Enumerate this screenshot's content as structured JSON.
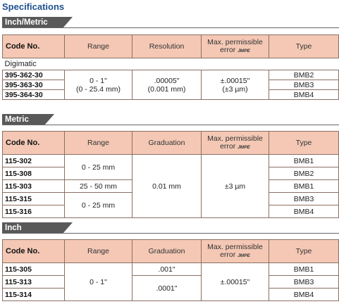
{
  "title": "Specifications",
  "sections": {
    "inch_metric": {
      "tab": "Inch/Metric",
      "headers": {
        "code": "Code No.",
        "range": "Range",
        "res": "Resolution",
        "err1": "Max. permissible",
        "err2": "error ",
        "err_sub": "JMPE",
        "type": "Type"
      },
      "group": "Digimatic",
      "rows": [
        {
          "code": "395-362-30",
          "type": "BMB2"
        },
        {
          "code": "395-363-30",
          "type": "BMB3"
        },
        {
          "code": "395-364-30",
          "type": "BMB4"
        }
      ],
      "range1": "0 - 1\"",
      "range2": "(0 - 25.4 mm)",
      "res1": ".00005\"",
      "res2": "(0.001 mm)",
      "err_v1": "±.00015\"",
      "err_v2": "(±3 µm)"
    },
    "metric": {
      "tab": "Metric",
      "headers": {
        "code": "Code No.",
        "range": "Range",
        "grad": "Graduation",
        "err1": "Max. permissible",
        "err2": "error ",
        "err_sub": "JMPE",
        "type": "Type"
      },
      "rows": [
        {
          "code": "115-302",
          "type": "BMB1"
        },
        {
          "code": "115-308",
          "type": "BMB2"
        },
        {
          "code": "115-303",
          "type": "BMB1"
        },
        {
          "code": "115-315",
          "type": "BMB3"
        },
        {
          "code": "115-316",
          "type": "BMB4"
        }
      ],
      "range_a": "0 - 25 mm",
      "range_b": "25 - 50 mm",
      "range_c": "0 - 25 mm",
      "grad": "0.01 mm",
      "err": "±3 µm"
    },
    "inch": {
      "tab": "Inch",
      "headers": {
        "code": "Code No.",
        "range": "Range",
        "grad": "Graduation",
        "err1": "Max. permissible",
        "err2": "error ",
        "err_sub": "JMPE",
        "type": "Type"
      },
      "rows": [
        {
          "code": "115-305",
          "type": "BMB1"
        },
        {
          "code": "115-313",
          "type": "BMB3"
        },
        {
          "code": "115-314",
          "type": "BMB4"
        }
      ],
      "range": "0 - 1\"",
      "grad_a": ".001\"",
      "grad_b": ".0001\"",
      "err": "±.00015\""
    }
  }
}
